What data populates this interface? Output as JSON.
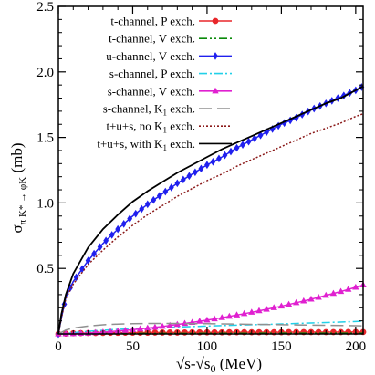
{
  "chart_data": {
    "type": "line",
    "xlabel_main": "√s-√s",
    "xlabel_sub": "0",
    "xlabel_unit": " (MeV)",
    "ylabel_sigma": "σ",
    "ylabel_sub": "π K* → φK",
    "ylabel_unit": " (mb)",
    "xlim": [
      0,
      205
    ],
    "ylim": [
      0,
      2.5
    ],
    "xticks": [
      0,
      50,
      100,
      150,
      200
    ],
    "yticks": [
      0.5,
      1.0,
      1.5,
      2.0,
      2.5
    ],
    "ytick_labels": [
      "0.5",
      "1.0",
      "1.5",
      "2.0",
      "2.5"
    ],
    "legend_position": "top-left",
    "grid": false,
    "series": [
      {
        "name": "t-channel, P exch.",
        "color": "#e8262a",
        "style": "solid",
        "marker": "circle",
        "x": [
          0,
          10,
          20,
          30,
          40,
          50,
          60,
          70,
          80,
          90,
          100,
          110,
          120,
          130,
          140,
          150,
          160,
          170,
          180,
          190,
          200,
          205
        ],
        "y": [
          0,
          0.005,
          0.007,
          0.008,
          0.009,
          0.01,
          0.01,
          0.011,
          0.011,
          0.012,
          0.012,
          0.012,
          0.013,
          0.013,
          0.013,
          0.013,
          0.014,
          0.014,
          0.014,
          0.014,
          0.015,
          0.015
        ]
      },
      {
        "name": "t-channel, V exch.",
        "color": "#0a8a0a",
        "style": "dashdotdot",
        "marker": "none",
        "x": [
          0,
          20,
          50,
          100,
          150,
          205
        ],
        "y": [
          0,
          0.003,
          0.004,
          0.005,
          0.006,
          0.006
        ]
      },
      {
        "name": "u-channel, V exch.",
        "color": "#2020ee",
        "style": "solid",
        "marker": "diamond",
        "x": [
          0,
          2,
          5,
          10,
          20,
          30,
          40,
          50,
          60,
          70,
          80,
          90,
          100,
          110,
          120,
          130,
          140,
          150,
          160,
          170,
          180,
          190,
          200,
          205
        ],
        "y": [
          0,
          0.12,
          0.28,
          0.4,
          0.56,
          0.69,
          0.8,
          0.9,
          0.99,
          1.07,
          1.15,
          1.22,
          1.29,
          1.35,
          1.42,
          1.48,
          1.54,
          1.6,
          1.65,
          1.71,
          1.76,
          1.81,
          1.86,
          1.89
        ]
      },
      {
        "name": "s-channel, P exch.",
        "color": "#22d0e8",
        "style": "dashdot",
        "marker": "none",
        "x": [
          0,
          10,
          20,
          30,
          40,
          50,
          60,
          80,
          100,
          120,
          140,
          160,
          180,
          200,
          205
        ],
        "y": [
          0,
          0.01,
          0.02,
          0.028,
          0.035,
          0.04,
          0.045,
          0.053,
          0.06,
          0.067,
          0.073,
          0.08,
          0.087,
          0.095,
          0.097
        ]
      },
      {
        "name": "s-channel, V exch.",
        "color": "#e020d0",
        "style": "solid",
        "marker": "triangle",
        "x": [
          0,
          10,
          20,
          30,
          40,
          50,
          60,
          70,
          80,
          90,
          100,
          110,
          120,
          130,
          140,
          150,
          160,
          170,
          180,
          190,
          200,
          205
        ],
        "y": [
          0,
          0.002,
          0.006,
          0.013,
          0.022,
          0.032,
          0.044,
          0.057,
          0.072,
          0.088,
          0.105,
          0.124,
          0.144,
          0.165,
          0.188,
          0.212,
          0.238,
          0.265,
          0.294,
          0.324,
          0.356,
          0.373
        ]
      },
      {
        "name": "s-channel, K₁ exch.",
        "name_base": "s-channel, K",
        "name_sub": "1",
        "name_tail": " exch.",
        "color": "#909090",
        "style": "dashed",
        "marker": "none",
        "x": [
          0,
          5,
          10,
          20,
          30,
          40,
          50,
          60,
          80,
          100,
          120,
          140,
          160,
          180,
          200,
          205
        ],
        "y": [
          0,
          0.03,
          0.045,
          0.06,
          0.07,
          0.075,
          0.078,
          0.08,
          0.08,
          0.078,
          0.075,
          0.072,
          0.069,
          0.066,
          0.063,
          0.062
        ]
      },
      {
        "name": "t+u+s, no K₁ exch.",
        "name_base": "t+u+s, no K",
        "name_sub": "1",
        "name_tail": " exch.",
        "color": "#8b1a1a",
        "style": "dotted",
        "marker": "none",
        "x": [
          0,
          2,
          5,
          10,
          20,
          30,
          40,
          50,
          60,
          70,
          80,
          90,
          100,
          110,
          120,
          130,
          140,
          150,
          160,
          170,
          180,
          190,
          200,
          205
        ],
        "y": [
          0,
          0.12,
          0.27,
          0.38,
          0.53,
          0.64,
          0.74,
          0.83,
          0.91,
          0.98,
          1.05,
          1.11,
          1.17,
          1.22,
          1.28,
          1.33,
          1.38,
          1.43,
          1.48,
          1.53,
          1.57,
          1.61,
          1.66,
          1.68
        ]
      },
      {
        "name": "t+u+s, with K₁ exch.",
        "name_base": "t+u+s, with K",
        "name_sub": "1",
        "name_tail": " exch.",
        "color": "#000000",
        "style": "solid",
        "marker": "none",
        "x": [
          0,
          2,
          5,
          10,
          20,
          30,
          40,
          50,
          60,
          70,
          80,
          90,
          100,
          110,
          120,
          130,
          140,
          150,
          160,
          170,
          180,
          190,
          200,
          205
        ],
        "y": [
          0,
          0.15,
          0.3,
          0.46,
          0.66,
          0.8,
          0.91,
          1.01,
          1.09,
          1.16,
          1.23,
          1.29,
          1.35,
          1.41,
          1.46,
          1.51,
          1.56,
          1.61,
          1.66,
          1.71,
          1.76,
          1.8,
          1.86,
          1.89
        ]
      }
    ]
  }
}
